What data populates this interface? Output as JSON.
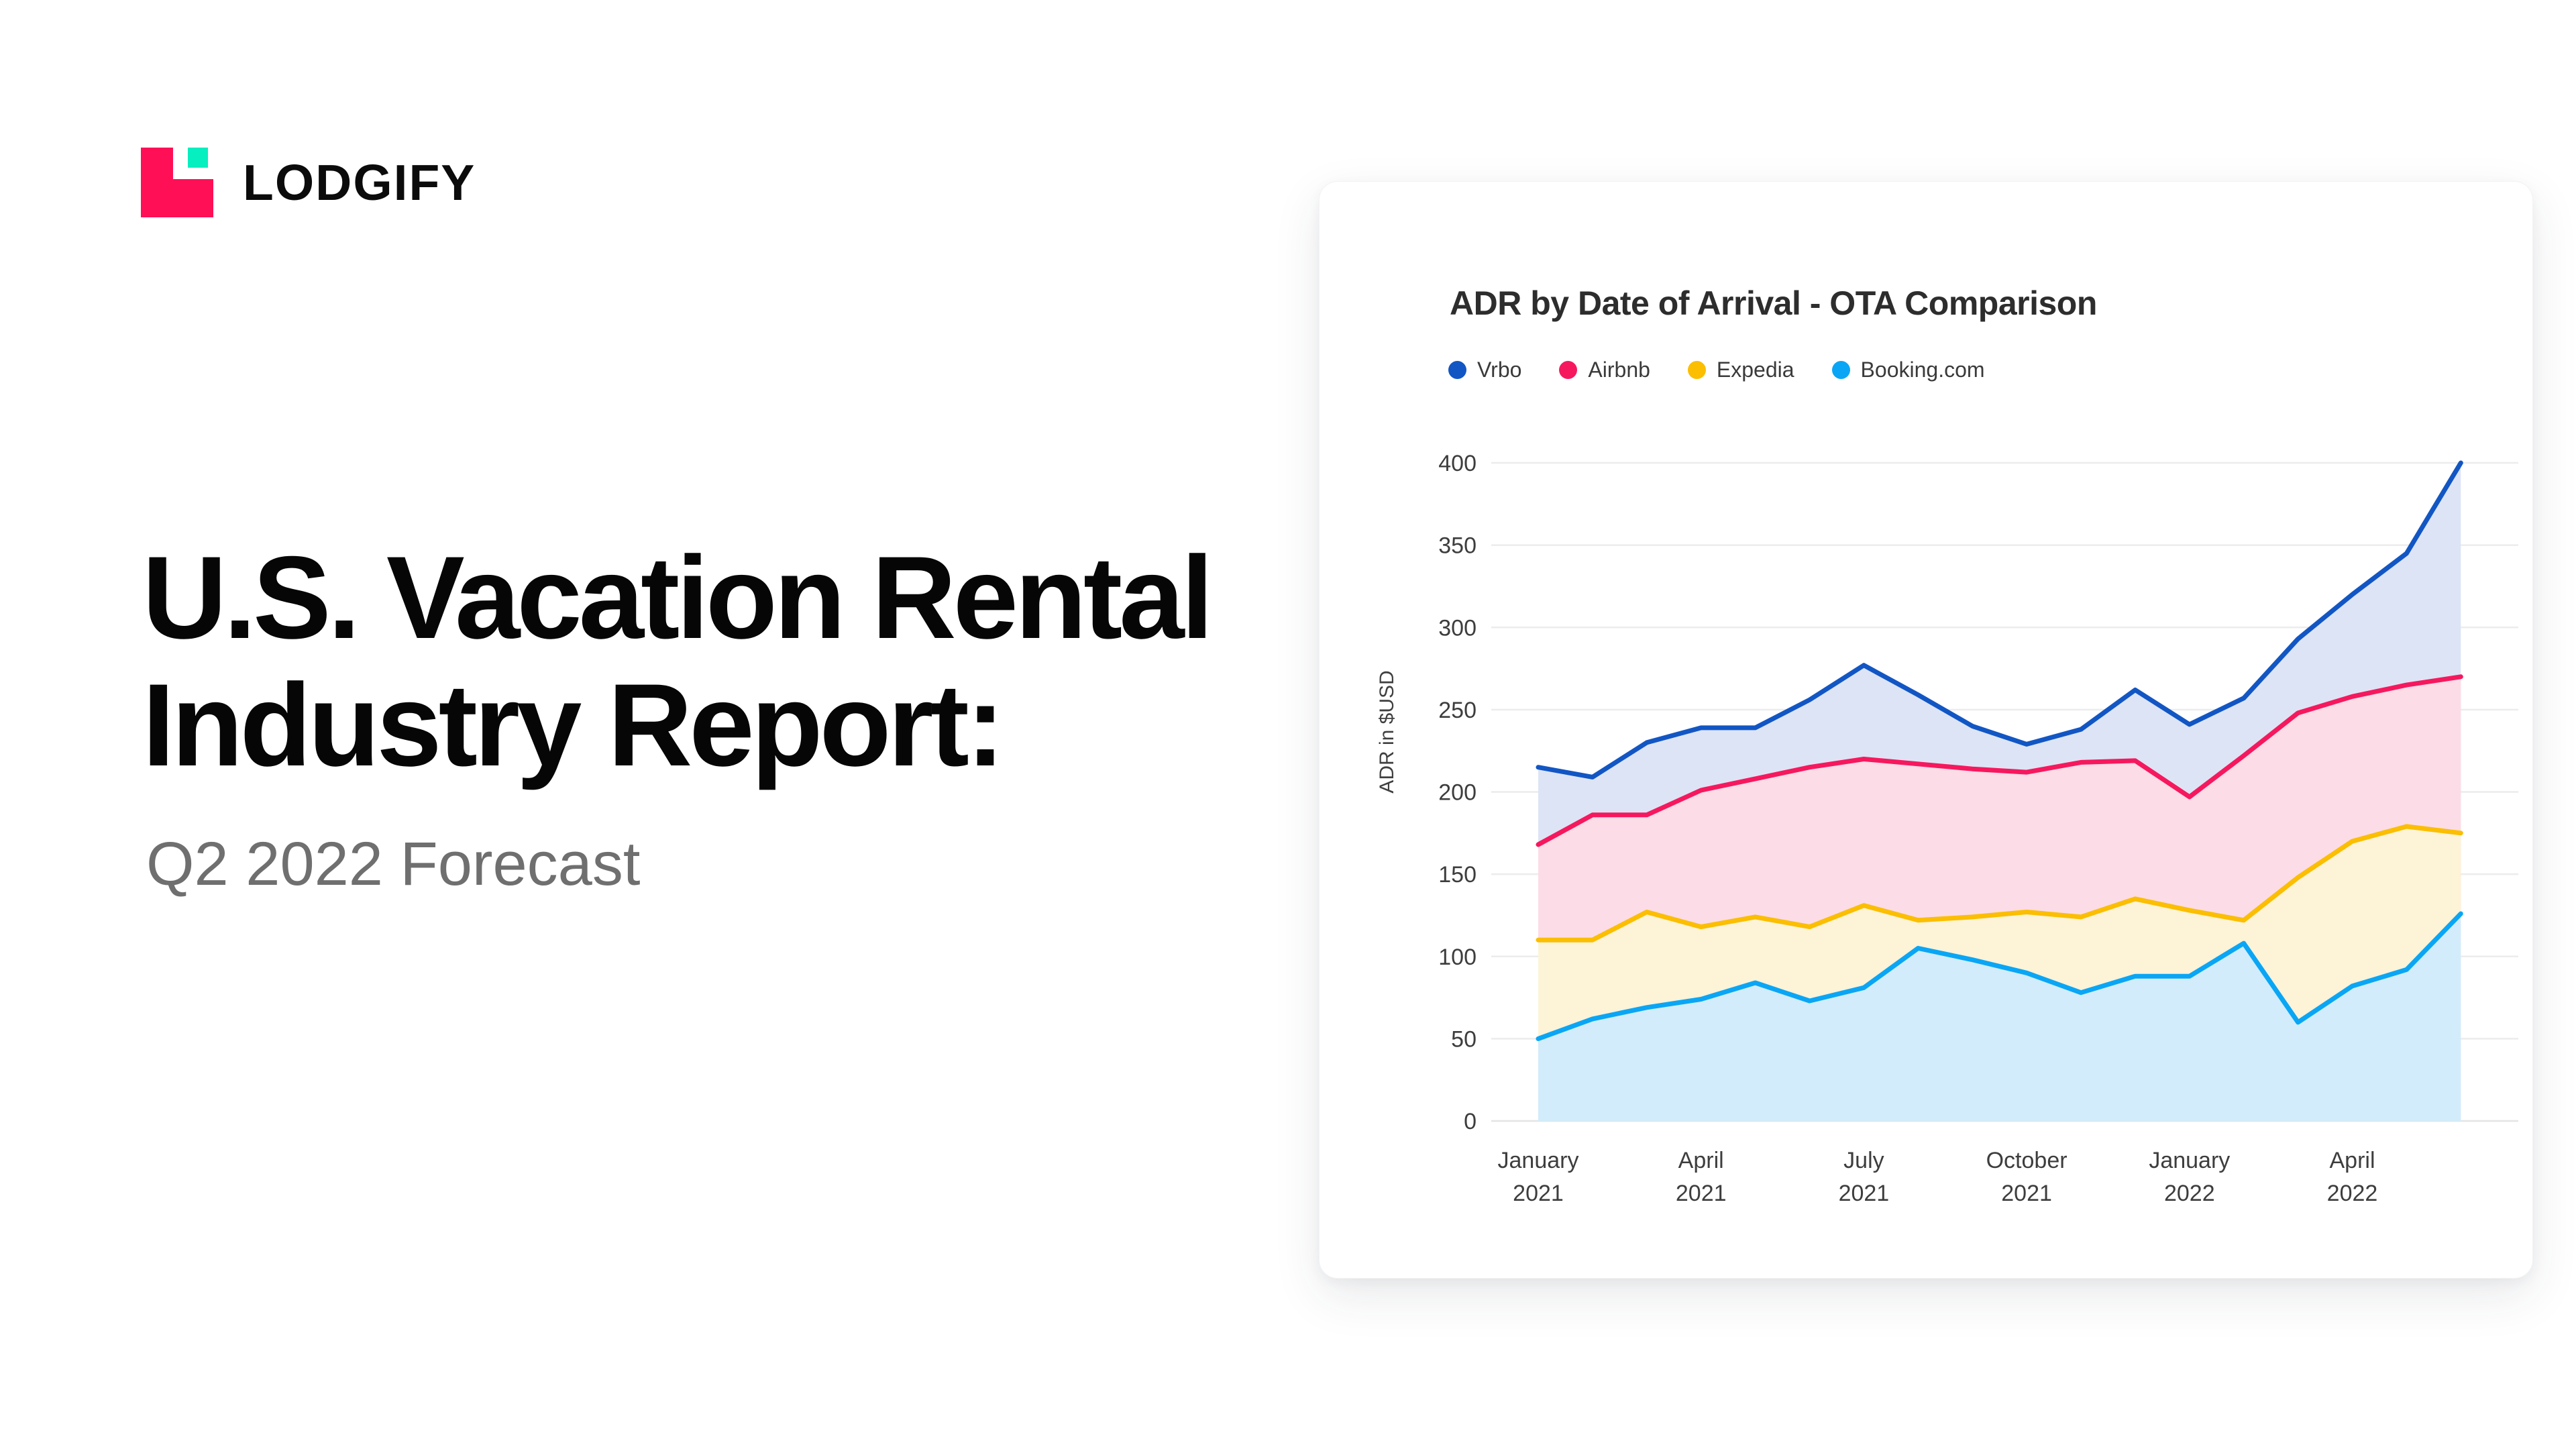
{
  "logo": {
    "wordmark": "LODGIFY",
    "colors": {
      "primary": "#FF0F56",
      "accent": "#06EFC0",
      "text": "#0b0b0b"
    }
  },
  "hero": {
    "title_line1": "U.S. Vacation Rental",
    "title_line2": "Industry Report:",
    "subtitle": "Q2 2022 Forecast"
  },
  "card": {
    "title": "ADR by Date of Arrival - OTA Comparison"
  },
  "chart_data": {
    "type": "area",
    "title": "ADR by Date of Arrival - OTA Comparison",
    "xlabel": "",
    "ylabel": "ADR in $USD",
    "ylim": [
      0,
      400
    ],
    "yticks": [
      0,
      50,
      100,
      150,
      200,
      250,
      300,
      350,
      400
    ],
    "grid": "horizontal",
    "legend_position": "top-left",
    "gridline_color": "#ececec",
    "axis_line_color": "#e4e4e4",
    "tick_text_color": "#3d3d3d",
    "x": [
      "January 2021",
      "February 2021",
      "March 2021",
      "April 2021",
      "May 2021",
      "June 2021",
      "July 2021",
      "August 2021",
      "September 2021",
      "October 2021",
      "November 2021",
      "December 2021",
      "January 2022",
      "February 2022",
      "March 2022",
      "April 2022",
      "May 2022",
      "June 2022"
    ],
    "x_ticks": [
      {
        "index": 0,
        "line1": "January",
        "line2": "2021"
      },
      {
        "index": 3,
        "line1": "April",
        "line2": "2021"
      },
      {
        "index": 6,
        "line1": "July",
        "line2": "2021"
      },
      {
        "index": 9,
        "line1": "October",
        "line2": "2021"
      },
      {
        "index": 12,
        "line1": "January",
        "line2": "2022"
      },
      {
        "index": 15,
        "line1": "April",
        "line2": "2022"
      }
    ],
    "series": [
      {
        "name": "Vrbo",
        "color": "#1256C4",
        "fill": "#DDE4F5",
        "values": [
          215,
          209,
          230,
          239,
          239,
          256,
          277,
          259,
          240,
          229,
          238,
          262,
          241,
          257,
          293,
          320,
          345,
          400
        ]
      },
      {
        "name": "Airbnb",
        "color": "#F6185E",
        "fill": "#FCDCE6",
        "values": [
          168,
          186,
          186,
          201,
          208,
          215,
          220,
          217,
          214,
          212,
          218,
          219,
          197,
          222,
          248,
          258,
          265,
          270
        ]
      },
      {
        "name": "Expedia",
        "color": "#FBBE00",
        "fill": "#FDF3D7",
        "values": [
          110,
          110,
          127,
          118,
          124,
          118,
          131,
          122,
          124,
          127,
          124,
          135,
          128,
          122,
          148,
          170,
          179,
          175
        ]
      },
      {
        "name": "Booking.com",
        "color": "#0AA6F5",
        "fill": "#D2ECFB",
        "values": [
          50,
          62,
          69,
          74,
          84,
          73,
          81,
          105,
          98,
          90,
          78,
          88,
          88,
          108,
          60,
          82,
          92,
          126
        ]
      }
    ]
  }
}
